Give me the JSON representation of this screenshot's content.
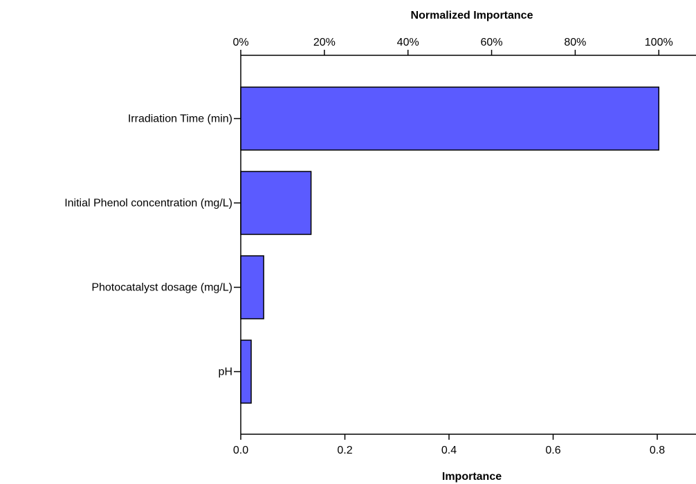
{
  "chart_data": {
    "type": "bar",
    "orientation": "horizontal",
    "categories": [
      "Irradiation Time (min)",
      "Initial Phenol concentration (mg/L)",
      "Photocatalyst dosage (mg/L)",
      "pH"
    ],
    "values": [
      0.803,
      0.135,
      0.044,
      0.02
    ],
    "xlabel": "Importance",
    "xlim": [
      0,
      0.88
    ],
    "xticks": [
      "0.0",
      "0.2",
      "0.4",
      "0.6",
      "0.8"
    ],
    "xtick_values": [
      0,
      0.2,
      0.4,
      0.6,
      0.8
    ],
    "secondary_xlabel": "Normalized Importance",
    "secondary_xticks": [
      "0%",
      "20%",
      "40%",
      "60%",
      "80%",
      "100%"
    ],
    "secondary_xtick_values": [
      0,
      0.2,
      0.4,
      0.6,
      0.8,
      1.0
    ],
    "secondary_max_value": 0.803,
    "bar_color": "#5b5bff",
    "grid": false,
    "legend": "none"
  }
}
